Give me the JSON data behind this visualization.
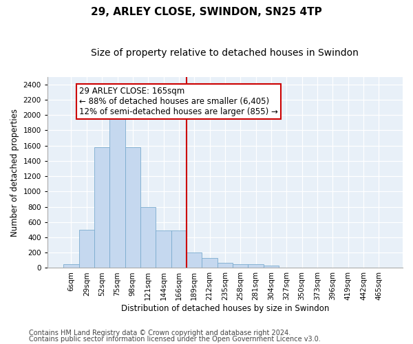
{
  "title": "29, ARLEY CLOSE, SWINDON, SN25 4TP",
  "subtitle": "Size of property relative to detached houses in Swindon",
  "xlabel": "Distribution of detached houses by size in Swindon",
  "ylabel": "Number of detached properties",
  "bar_labels": [
    "6sqm",
    "29sqm",
    "52sqm",
    "75sqm",
    "98sqm",
    "121sqm",
    "144sqm",
    "166sqm",
    "189sqm",
    "212sqm",
    "235sqm",
    "258sqm",
    "281sqm",
    "304sqm",
    "327sqm",
    "350sqm",
    "373sqm",
    "396sqm",
    "419sqm",
    "442sqm",
    "465sqm"
  ],
  "bar_values": [
    50,
    500,
    1580,
    1950,
    1580,
    800,
    490,
    490,
    200,
    130,
    70,
    50,
    50,
    30,
    0,
    0,
    0,
    0,
    0,
    0,
    0
  ],
  "bar_color": "#c5d8ef",
  "bar_edge_color": "#7aabcf",
  "vline_x": 7.5,
  "vline_color": "#cc0000",
  "ylim": [
    0,
    2500
  ],
  "yticks": [
    0,
    200,
    400,
    600,
    800,
    1000,
    1200,
    1400,
    1600,
    1800,
    2000,
    2200,
    2400
  ],
  "annotation_text": "29 ARLEY CLOSE: 165sqm\n← 88% of detached houses are smaller (6,405)\n12% of semi-detached houses are larger (855) →",
  "annotation_box_color": "#ffffff",
  "annotation_box_edge": "#cc0000",
  "footer1": "Contains HM Land Registry data © Crown copyright and database right 2024.",
  "footer2": "Contains public sector information licensed under the Open Government Licence v3.0.",
  "background_color": "#e8f0f8",
  "grid_color": "#ffffff",
  "title_fontsize": 11,
  "subtitle_fontsize": 10,
  "annot_fontsize": 8.5,
  "label_fontsize": 8.5,
  "tick_fontsize": 7.5,
  "footer_fontsize": 7
}
